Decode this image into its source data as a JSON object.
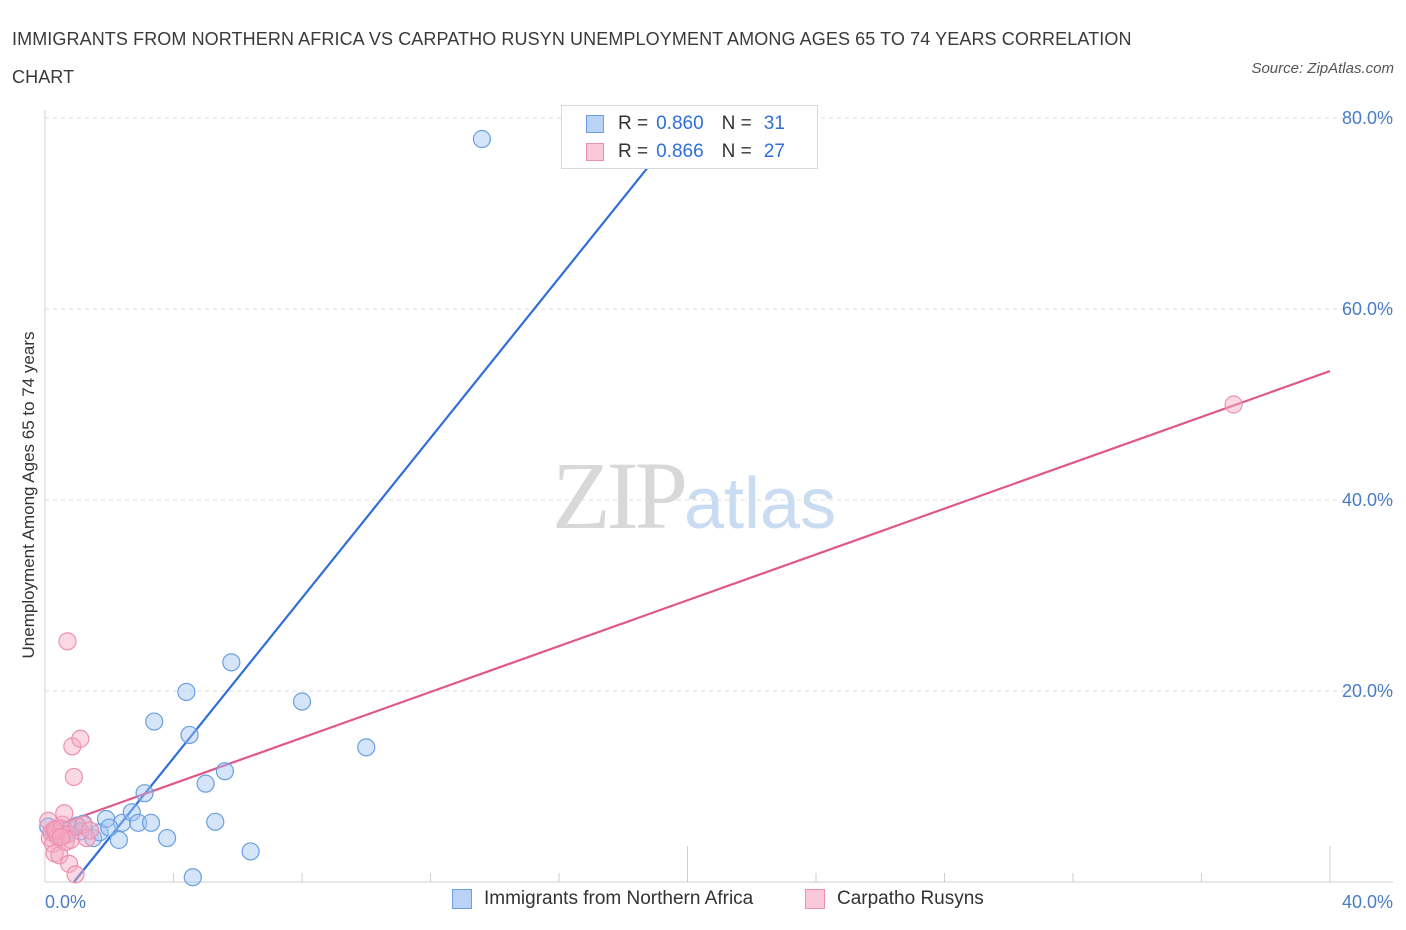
{
  "title": "IMMIGRANTS FROM NORTHERN AFRICA VS CARPATHO RUSYN UNEMPLOYMENT AMONG AGES 65 TO 74 YEARS CORRELATION CHART",
  "source": "Source: ZipAtlas.com",
  "watermark": {
    "zip": "ZIP",
    "atlas": "atlas"
  },
  "legend": {
    "rows": [
      {
        "r_label": "R =",
        "r_value": "0.860",
        "n_label": "N =",
        "n_value": "31"
      },
      {
        "r_label": "R =",
        "r_value": "0.866",
        "n_label": "N =",
        "n_value": "27"
      }
    ]
  },
  "bottom_legend": [
    "Immigrants from Northern Africa",
    "Carpatho Rusyns"
  ],
  "chart_data": {
    "type": "scatter",
    "title": "IMMIGRANTS FROM NORTHERN AFRICA VS CARPATHO RUSYN UNEMPLOYMENT AMONG AGES 65 TO 74 YEARS CORRELATION CHART",
    "xlabel": "",
    "ylabel": "Unemployment Among Ages 65 to 74 years",
    "xlim": [
      0,
      40
    ],
    "ylim": [
      0,
      80
    ],
    "x_tick_labels": [
      "0.0%",
      "40.0%"
    ],
    "y_ticks": [
      20,
      40,
      60,
      80
    ],
    "y_tick_labels": [
      "20.0%",
      "40.0%",
      "60.0%",
      "80.0%"
    ],
    "colors": {
      "blue": "#6a9fe0",
      "pink": "#ef8fb0",
      "blue_line": "#2f6fd6",
      "pink_line": "#e0578b"
    },
    "series": [
      {
        "name": "Immigrants from Northern Africa",
        "color": "#6a9fe0",
        "R": 0.86,
        "N": 31,
        "points": [
          [
            0.1,
            5.8
          ],
          [
            0.3,
            5.2
          ],
          [
            0.5,
            5.6
          ],
          [
            0.8,
            5.5
          ],
          [
            1.0,
            5.9
          ],
          [
            1.2,
            6.1
          ],
          [
            1.5,
            4.6
          ],
          [
            1.7,
            5.2
          ],
          [
            1.9,
            6.6
          ],
          [
            2.3,
            4.4
          ],
          [
            2.4,
            6.2
          ],
          [
            2.7,
            7.3
          ],
          [
            2.9,
            6.2
          ],
          [
            3.1,
            9.3
          ],
          [
            3.3,
            6.2
          ],
          [
            3.4,
            16.8
          ],
          [
            3.8,
            4.6
          ],
          [
            4.4,
            19.9
          ],
          [
            4.5,
            15.4
          ],
          [
            4.6,
            0.5
          ],
          [
            5.0,
            10.3
          ],
          [
            5.3,
            6.3
          ],
          [
            5.6,
            11.6
          ],
          [
            5.8,
            23.0
          ],
          [
            6.4,
            3.2
          ],
          [
            8.0,
            18.9
          ],
          [
            10.0,
            14.1
          ],
          [
            13.6,
            77.8
          ],
          [
            0.6,
            4.9
          ],
          [
            1.1,
            5.3
          ],
          [
            2.0,
            5.7
          ]
        ],
        "trend": {
          "x": [
            0.9,
            20.0
          ],
          "y": [
            0.0,
            80.0
          ]
        }
      },
      {
        "name": "Carpatho Rusyns",
        "color": "#ef8fb0",
        "R": 0.866,
        "N": 27,
        "points": [
          [
            0.1,
            6.4
          ],
          [
            0.15,
            4.6
          ],
          [
            0.2,
            5.2
          ],
          [
            0.25,
            4.0
          ],
          [
            0.3,
            3.0
          ],
          [
            0.35,
            5.4
          ],
          [
            0.4,
            4.8
          ],
          [
            0.45,
            2.8
          ],
          [
            0.5,
            5.6
          ],
          [
            0.55,
            6.0
          ],
          [
            0.6,
            7.2
          ],
          [
            0.65,
            4.2
          ],
          [
            0.7,
            5.0
          ],
          [
            0.75,
            1.9
          ],
          [
            0.8,
            4.4
          ],
          [
            0.85,
            14.2
          ],
          [
            0.7,
            25.2
          ],
          [
            0.9,
            11.0
          ],
          [
            0.95,
            0.8
          ],
          [
            1.0,
            5.8
          ],
          [
            1.1,
            15.0
          ],
          [
            1.2,
            6.0
          ],
          [
            1.3,
            4.6
          ],
          [
            1.4,
            5.4
          ],
          [
            0.3,
            5.5
          ],
          [
            0.5,
            4.7
          ],
          [
            37.0,
            50.0
          ]
        ],
        "trend": {
          "x": [
            0.0,
            40.0
          ],
          "y": [
            5.5,
            53.5
          ]
        }
      }
    ]
  }
}
